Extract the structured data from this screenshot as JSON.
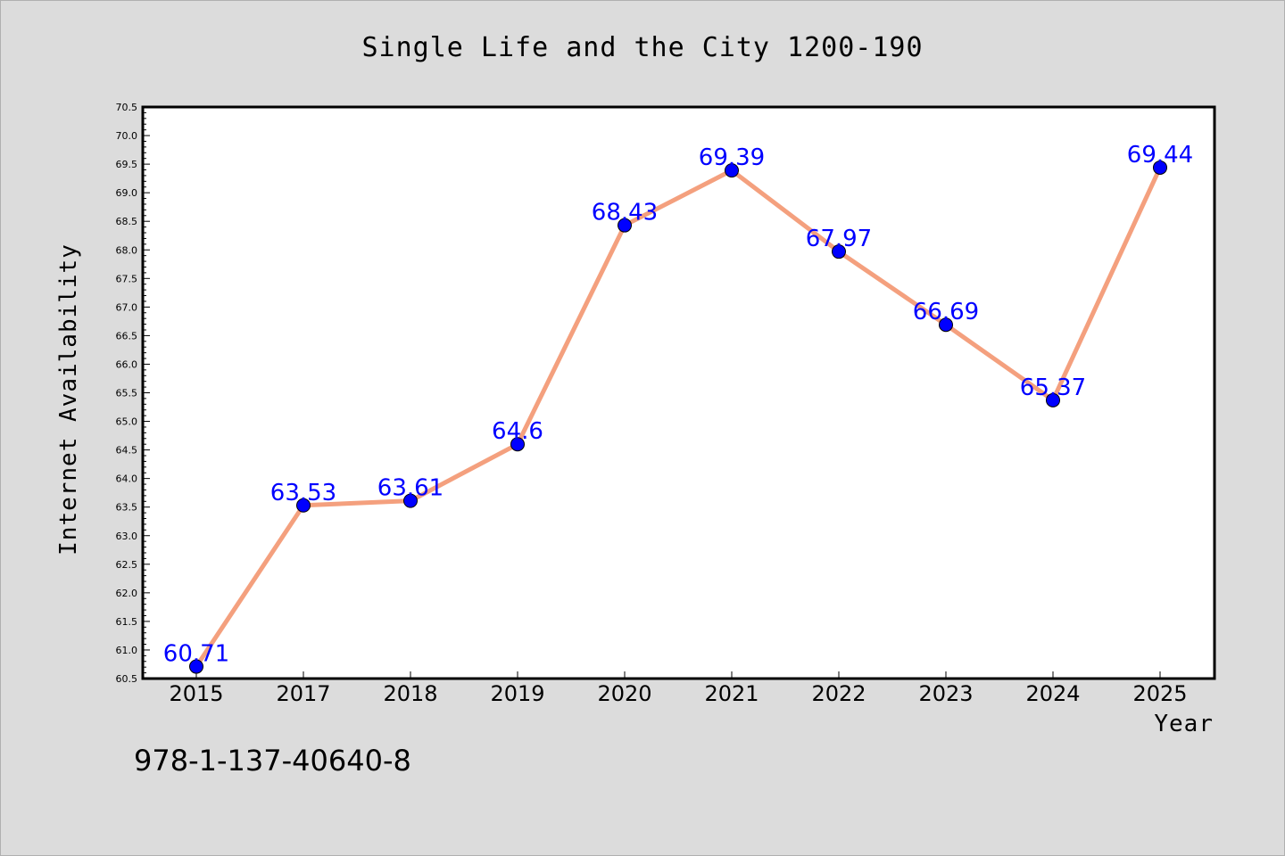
{
  "chart_data": {
    "type": "line",
    "title": "Single Life and the City 1200-190",
    "xlabel": "Year",
    "ylabel": "Internet Availability",
    "categories": [
      "2015",
      "2017",
      "2018",
      "2019",
      "2020",
      "2021",
      "2022",
      "2023",
      "2024",
      "2025"
    ],
    "values": [
      60.71,
      63.53,
      63.61,
      64.6,
      68.43,
      69.39,
      67.97,
      66.69,
      65.37,
      69.44
    ],
    "data_labels": [
      "60.71",
      "63.53",
      "63.61",
      "64.6",
      "68.43",
      "69.39",
      "67.97",
      "66.69",
      "65.37",
      "69.44"
    ],
    "ylim": [
      60.5,
      70.5
    ],
    "ytick_step": 0.5,
    "grid": false,
    "line_color": "#f4a07e",
    "marker_color": "#0000ff",
    "label_color": "#0000ff",
    "background_color": "#dcdcdc",
    "plot_background_color": "#ffffff"
  },
  "footer": {
    "isbn": "978-1-137-40640-8"
  }
}
